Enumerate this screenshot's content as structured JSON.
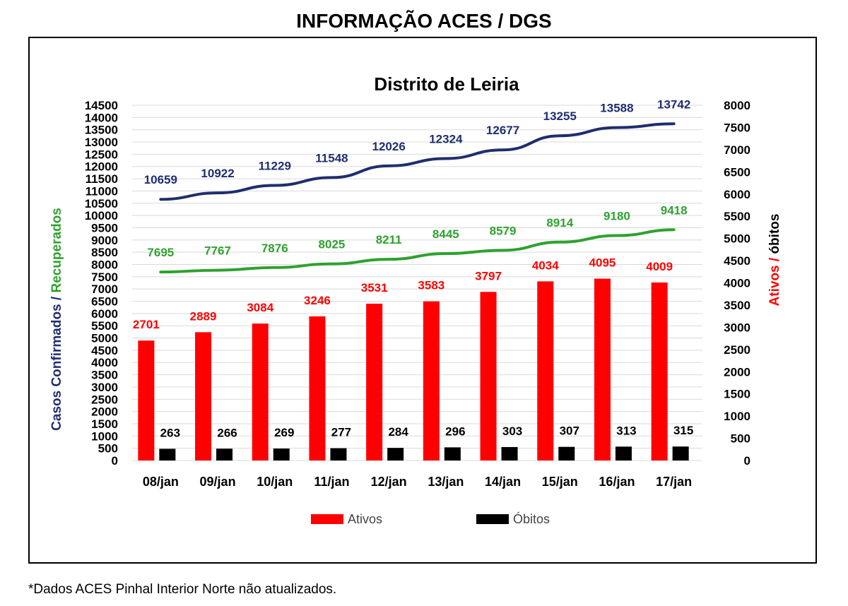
{
  "header": {
    "title": "INFORMAÇÃO ACES / DGS"
  },
  "footnote": "*Dados ACES Pinhal Interior Norte não atualizados.",
  "chart_data": {
    "type": "bar",
    "title": "Distrito de Leiria",
    "categories": [
      "08/jan",
      "09/jan",
      "10/jan",
      "11/jan",
      "12/jan",
      "13/jan",
      "14/jan",
      "15/jan",
      "16/jan",
      "17/jan"
    ],
    "left_axis": {
      "label_part1": "Casos Confirmados",
      "label_sep": " / ",
      "label_part2": "Recuperados",
      "label_part1_color": "#1f2e6e",
      "label_part2_color": "#2fa12f",
      "ylim": [
        0,
        14500
      ],
      "ticks": [
        "0",
        "500",
        "1000",
        "1500",
        "2000",
        "2500",
        "3000",
        "3500",
        "4000",
        "4500",
        "5000",
        "5500",
        "6000",
        "6500",
        "7000",
        "7500",
        "8000",
        "8500",
        "9000",
        "9500",
        "10000",
        "10500",
        "11000",
        "11500",
        "12000",
        "12500",
        "13000",
        "13500",
        "14000",
        "14500"
      ]
    },
    "right_axis": {
      "label_part1": "Ativos",
      "label_sep": " / ",
      "label_part2": "óbitos",
      "label_part1_color": "#ff0000",
      "label_part2_color": "#000000",
      "ylim": [
        0,
        8000
      ],
      "ticks": [
        "0",
        "500",
        "1000",
        "1500",
        "2000",
        "2500",
        "3000",
        "3500",
        "4000",
        "4500",
        "5000",
        "5500",
        "6000",
        "6500",
        "7000",
        "7500",
        "8000"
      ]
    },
    "grid": true,
    "series": [
      {
        "name": "Ativos",
        "kind": "bar",
        "axis": "right",
        "color": "#ff0000",
        "values": [
          2701,
          2889,
          3084,
          3246,
          3531,
          3583,
          3797,
          4034,
          4095,
          4009
        ]
      },
      {
        "name": "Óbitos",
        "kind": "bar",
        "axis": "right",
        "color": "#000000",
        "values": [
          263,
          266,
          269,
          277,
          284,
          296,
          303,
          307,
          313,
          315
        ]
      },
      {
        "kind": "line",
        "axis": "left",
        "color": "#1f2e6e",
        "values": [
          10659,
          10922,
          11229,
          11548,
          12026,
          12324,
          12677,
          13255,
          13588,
          13742
        ]
      },
      {
        "kind": "line",
        "axis": "left",
        "color": "#2fa12f",
        "values": [
          7695,
          7767,
          7876,
          8025,
          8211,
          8445,
          8579,
          8914,
          9180,
          9418
        ]
      }
    ],
    "legend": {
      "placement": "bottom",
      "items": [
        "Ativos",
        "Óbitos"
      ]
    }
  }
}
